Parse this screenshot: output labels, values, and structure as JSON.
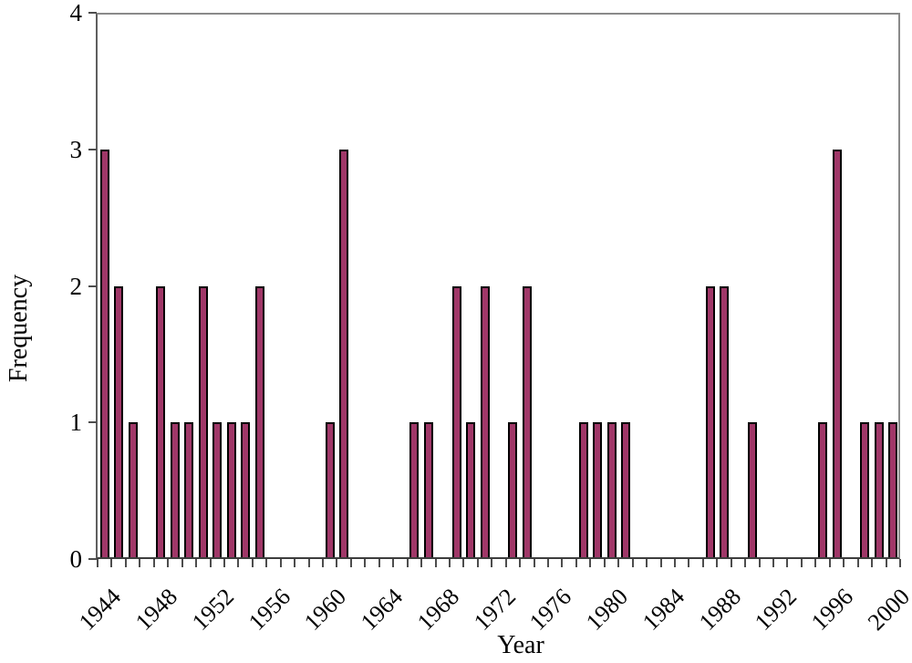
{
  "chart_data": {
    "type": "bar",
    "title": "",
    "xlabel": "Year",
    "ylabel": "Frequency",
    "x_start": 1944,
    "x_end": 2000,
    "categories": [
      1944,
      1945,
      1946,
      1947,
      1948,
      1949,
      1950,
      1951,
      1952,
      1953,
      1954,
      1955,
      1956,
      1957,
      1958,
      1959,
      1960,
      1961,
      1962,
      1963,
      1964,
      1965,
      1966,
      1967,
      1968,
      1969,
      1970,
      1971,
      1972,
      1973,
      1974,
      1975,
      1976,
      1977,
      1978,
      1979,
      1980,
      1981,
      1982,
      1983,
      1984,
      1985,
      1986,
      1987,
      1988,
      1989,
      1990,
      1991,
      1992,
      1993,
      1994,
      1995,
      1996,
      1997,
      1998,
      1999,
      2000
    ],
    "values": [
      3,
      2,
      1,
      0,
      2,
      1,
      1,
      2,
      1,
      1,
      1,
      2,
      0,
      0,
      0,
      0,
      1,
      3,
      0,
      0,
      0,
      0,
      1,
      1,
      0,
      2,
      1,
      2,
      0,
      1,
      2,
      0,
      0,
      0,
      1,
      1,
      1,
      1,
      0,
      0,
      0,
      0,
      0,
      2,
      2,
      0,
      1,
      0,
      0,
      0,
      0,
      1,
      3,
      0,
      1,
      1,
      1
    ],
    "ylim": [
      0,
      4
    ],
    "y_ticks": [
      0,
      1,
      2,
      3,
      4
    ],
    "x_tick_labels": [
      "1944",
      "1948",
      "1952",
      "1956",
      "1960",
      "1964",
      "1968",
      "1972",
      "1976",
      "1980",
      "1984",
      "1988",
      "1992",
      "1996",
      "2000"
    ],
    "grid": "off",
    "legend": "none",
    "colors": {
      "bar_fill": "#a03768",
      "bar_border": "#000000",
      "axis_line": "#3d3d3d",
      "frame_line": "#8a8a8a",
      "tick": "#4d4d4d",
      "text": "#000000",
      "background": "#ffffff"
    }
  }
}
